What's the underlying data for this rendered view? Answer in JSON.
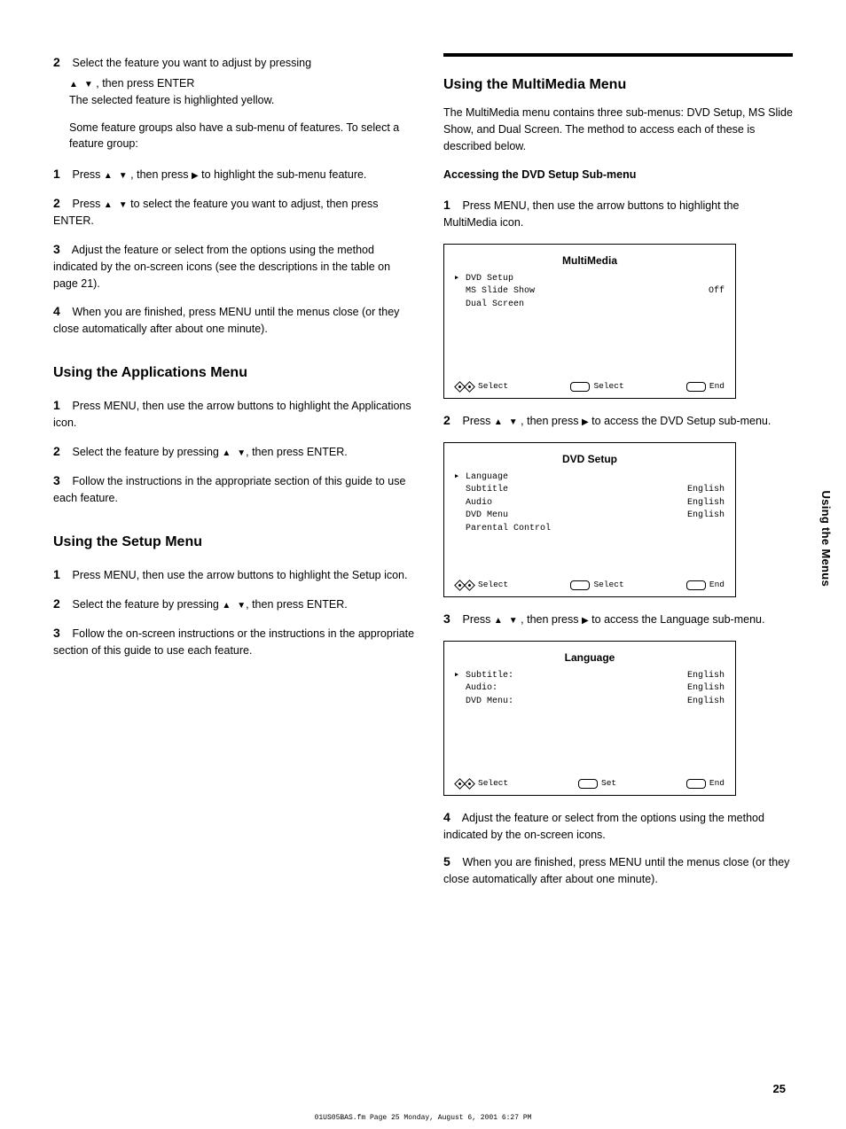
{
  "page_number": "25",
  "side_label": "Using the Menus",
  "source_stamp": "01US05BAS.fm  Page 25  Monday, August 6, 2001  6:27 PM",
  "left": {
    "step2": {
      "num": "2",
      "text_before": "Select the feature you want to adjust by pressing",
      "text_after": ", then press ENTER"
    },
    "step2_result": "The selected feature is highlighted yellow.",
    "feature_group_note": "Some feature groups also have a sub-menu of features. To select a feature group:",
    "sub1": {
      "num": "1",
      "text_a": "Press",
      "text_b": ", then press",
      "text_c": "to highlight the sub-menu feature."
    },
    "sub2": {
      "num": "2",
      "text_a": "Press",
      "text_b": "to select the feature you want to adjust, then press ENTER."
    },
    "step3": {
      "num": "3",
      "text": "Adjust the feature or select from the options using the method indicated by the on-screen icons (see the descriptions in the table on page 21)."
    },
    "step4": {
      "num": "4",
      "text": "When you are finished, press MENU until the menus close (or they close automatically after about one minute)."
    },
    "applications_title": "Using the Applications Menu",
    "step_a1_num": "1",
    "step_a1": "Press MENU, then use the arrow buttons to highlight the Applications icon.",
    "step_a2_num": "2",
    "step_a2_a": "Select the feature by pressing",
    "step_a2_b": "then press ENTER.",
    "step_a3_num": "3",
    "step_a3": "Follow the instructions in the appropriate section of this guide to use each feature.",
    "setup_title": "Using the Setup Menu",
    "step_s1_num": "1",
    "step_s1": "Press MENU, then use the arrow buttons to highlight the Setup icon.",
    "step_s2_num": "2",
    "step_s2_a": "Select the feature by pressing",
    "step_s2_b": "then press ENTER.",
    "step_s3_num": "3",
    "step_s3": "Follow the on-screen instructions or the instructions in the appropriate section of this guide to use each feature."
  },
  "right": {
    "heading": "Using the MultiMedia Menu",
    "intro": "The MultiMedia menu contains three sub-menus: DVD Setup, MS Slide Show, and Dual Screen. The method to access each of these is described below.",
    "dvd_title": "Accessing the DVD Setup Sub-menu",
    "step_d1_num": "1",
    "step_d1": "Press MENU, then use the arrow buttons to highlight the MultiMedia icon.",
    "screen1": {
      "title": "MultiMedia",
      "rows": [
        {
          "left": "DVD Setup",
          "right": "",
          "selected": true
        },
        {
          "left": "MS Slide Show",
          "right": "Off",
          "selected": false
        },
        {
          "left": "Dual Screen",
          "right": "",
          "selected": false
        }
      ],
      "footer": {
        "select": "Select",
        "set": "Select",
        "end": "End"
      }
    },
    "step_d2_num": "2",
    "step_d2_a": "Press",
    "step_d2_b": ", then press",
    "step_d2_c": "to access the DVD Setup sub-menu.",
    "screen2": {
      "title": "DVD Setup",
      "rows": [
        {
          "left": "Language",
          "right": "",
          "selected": true
        },
        {
          "left": "Subtitle",
          "right": "English",
          "selected": false
        },
        {
          "left": "Audio",
          "right": "English",
          "selected": false
        },
        {
          "left": "DVD Menu",
          "right": "English",
          "selected": false
        },
        {
          "left": "Parental Control",
          "right": "",
          "selected": false
        }
      ],
      "footer": {
        "select": "Select",
        "set": "Select",
        "end": "End"
      }
    },
    "step_d3_num": "3",
    "step_d3_a": "Press",
    "step_d3_b": ", then press",
    "step_d3_c": "to access the Language sub-menu.",
    "screen3": {
      "title": "Language",
      "rows": [
        {
          "left": "Subtitle:",
          "right": "English",
          "selected": true
        },
        {
          "left": "Audio:",
          "right": "English",
          "selected": false
        },
        {
          "left": "DVD Menu:",
          "right": "English",
          "selected": false
        }
      ],
      "footer": {
        "select": "Select",
        "set": "Set",
        "end": "End"
      }
    },
    "step_d4_num": "4",
    "step_d4": "Adjust the feature or select from the options using the method indicated by the on-screen icons.",
    "step_d5_num": "5",
    "step_d5": "When you are finished, press MENU until the menus close (or they close automatically after about one minute)."
  }
}
